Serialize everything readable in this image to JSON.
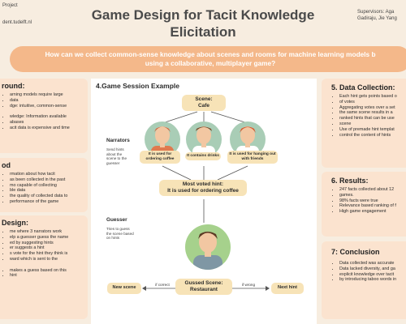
{
  "header": {
    "left_line1": "Project",
    "left_line2": "dent.tudelft.nl",
    "right_line1": "Supervisors: Aga",
    "right_line2": "Gadiraju, Jie Yang",
    "title_line1": "Game Design for Tacit Knowledge",
    "title_line2": "Elicitation",
    "question_line1": "How can we collect common-sense knowledge about scenes and rooms for machine learning models b",
    "question_line2": "using a collaborative, multiplayer game?"
  },
  "background": {
    "title": "round:",
    "items": [
      "arning models require large",
      "data",
      "dge: intuitive, common-sense",
      "",
      "wledge: Information available",
      "abases",
      "acit data is expensive and time"
    ]
  },
  "method": {
    "title": "od",
    "items": [
      "rmation about how tacit",
      "as been collected in the past",
      "mo capable of collecting",
      "ble data",
      "the quality of collected data to",
      "performance of the game"
    ]
  },
  "design": {
    "title": "Design:",
    "items": [
      "me where 3 narrators work",
      "elp a guesser guess the name",
      "ed by suggesting hints",
      "er suggests a hint",
      "s vote for the hint they think is",
      "ward which is sent to the",
      "",
      "makes a guess based on this",
      "hint"
    ]
  },
  "session": {
    "title": "4.Game Session Example",
    "scene_label_line1": "Scene:",
    "scene_label_line2": "Cafe",
    "narrators_label": "Narrators",
    "narrators_note": "Send hints about the scene to the guesser",
    "hints": [
      "It is used for ordering coffee",
      "It contains drinks",
      "It is used for hanging out with friends"
    ],
    "voted_line1": "Most voted hint:",
    "voted_line2": "It is used for ordering coffee",
    "guesser_label": "Guesser",
    "guesser_note": "Tries to guess the scene based on hints",
    "guess_line1": "Gussed Scene:",
    "guess_line2": "Restaurant",
    "correct_label": "if correct",
    "wrong_label": "if wrong",
    "new_scene": "New scene",
    "next_hint": "Next hint"
  },
  "data_collection": {
    "title": "5. Data Collection:",
    "items": [
      "Each hint gets points based o",
      "of votes",
      "Aggregating votes over a set",
      "the same scene results in a",
      "ranked hints that can be use",
      "scene",
      "Use of premade hint templat",
      "control the content of hints"
    ]
  },
  "results": {
    "title": "6. Results:",
    "items": [
      "247 facts collected about 12",
      "games.",
      "98% facts were true",
      "Relevance based ranking of f",
      "High game engagement"
    ]
  },
  "conclusion": {
    "title": "7: Conclusion",
    "items": [
      "Data collected was accurate",
      "Data lacked diversity, and ga",
      "explicit knowledge over tacit",
      "by introducing taboo words in"
    ]
  },
  "colors": {
    "background": "#f7ede0",
    "box": "#fbe3cf",
    "banner": "#f4b88a",
    "pill": "#f7e3b7"
  }
}
